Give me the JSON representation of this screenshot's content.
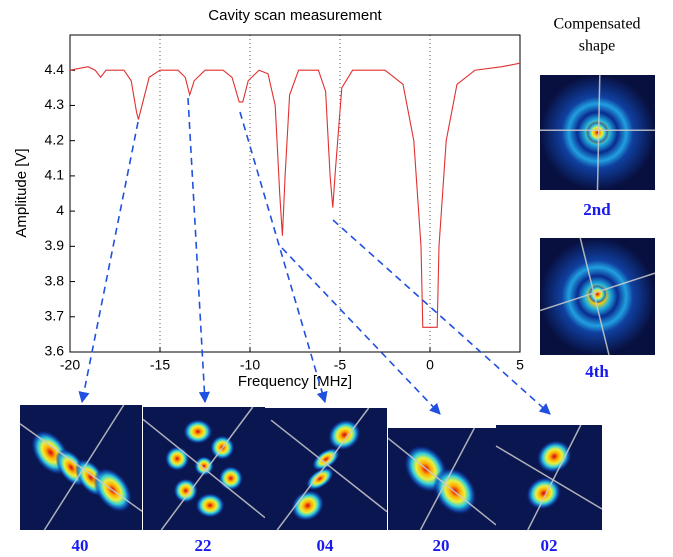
{
  "chart_data": {
    "type": "line",
    "title": "Cavity scan measurement",
    "x_label": "Frequency [MHz]",
    "y_label": "Amplitude [V]",
    "xlim": [
      -20,
      5
    ],
    "ylim": [
      3.6,
      4.5
    ],
    "xticks": [
      -20,
      -15,
      -10,
      -5,
      0,
      5
    ],
    "yticks": [
      3.6,
      3.7,
      3.8,
      3.9,
      4,
      4.1,
      4.2,
      4.3,
      4.4
    ],
    "grid": "x",
    "series": [
      {
        "color": "#e03030",
        "x": [
          -20,
          -19,
          -18.6,
          -18.3,
          -18.0,
          -17,
          -16.6,
          -16.3,
          -16.2,
          -16.0,
          -15.6,
          -15,
          -14,
          -13.6,
          -13.35,
          -13.1,
          -12.5,
          -11.5,
          -11,
          -10.6,
          -10.4,
          -10.1,
          -9.5,
          -9,
          -8.6,
          -8.35,
          -8.2,
          -8.05,
          -7.8,
          -7.3,
          -6.2,
          -5.8,
          -5.55,
          -5.4,
          -5.25,
          -4.9,
          -4.3,
          -2.5,
          -1.5,
          -0.9,
          -0.5,
          -0.4,
          0.4,
          0.5,
          0.9,
          1.5,
          2.5,
          4,
          5
        ],
        "values": [
          4.4,
          4.41,
          4.4,
          4.38,
          4.4,
          4.4,
          4.37,
          4.28,
          4.26,
          4.3,
          4.38,
          4.4,
          4.4,
          4.38,
          4.33,
          4.37,
          4.4,
          4.4,
          4.38,
          4.31,
          4.31,
          4.37,
          4.4,
          4.39,
          4.3,
          4.05,
          3.93,
          4.1,
          4.33,
          4.4,
          4.4,
          4.34,
          4.1,
          4.01,
          4.12,
          4.35,
          4.4,
          4.4,
          4.36,
          4.2,
          3.9,
          3.67,
          3.67,
          3.9,
          4.2,
          4.36,
          4.4,
          4.41,
          4.42
        ]
      }
    ]
  },
  "mode_labels": [
    "40",
    "22",
    "04",
    "20",
    "02"
  ],
  "compensated_title": [
    "Compensated",
    "shape"
  ],
  "compensated_labels": [
    "2nd",
    "4th"
  ]
}
